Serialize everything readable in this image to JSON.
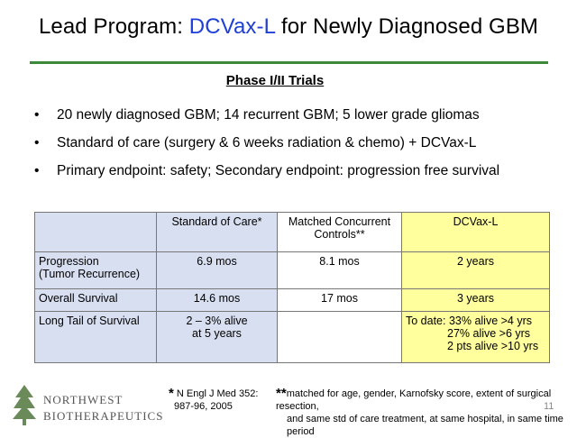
{
  "slide": {
    "title_prefix": "Lead Program: ",
    "title_highlight": "DCVax-L",
    "title_suffix": " for Newly Diagnosed GBM",
    "subtitle": "Phase I/II Trials",
    "bullets": [
      "20 newly diagnosed GBM;  14 recurrent GBM;  5 lower grade gliomas",
      "Standard of care (surgery & 6 weeks radiation & chemo) + DCVax-L",
      "Primary endpoint: safety;   Secondary endpoint: progression free survival"
    ],
    "bullet_symbol": "•",
    "colors": {
      "title_highlight": "#1f3fd6",
      "rule": "#3a8a3a",
      "blue_cells": "#d8dff0",
      "yellow_cells": "#ffff9e"
    }
  },
  "table": {
    "headers": [
      "",
      "Standard of Care*",
      "Matched  Concurrent Controls**",
      "DCVax-L"
    ],
    "rows": [
      {
        "label_line1": "Progression",
        "label_line2": "(Tumor Recurrence)",
        "soc": "6.9 mos",
        "mcc": "8.1 mos",
        "dcvax": "2 years"
      },
      {
        "label_line1": "Overall Survival",
        "label_line2": "",
        "soc": "14.6 mos",
        "mcc": "17 mos",
        "dcvax": "3 years"
      },
      {
        "label_line1": "Long Tail of Survival",
        "label_line2": "",
        "soc_line1": "2 – 3% alive",
        "soc_line2": "at 5 years",
        "mcc": "",
        "dcvax_line1": "To date:  33% alive >4 yrs",
        "dcvax_line2": "27% alive >6 yrs",
        "dcvax_line3": "2 pts alive >10 yrs"
      }
    ]
  },
  "footer": {
    "logo_line1": "NORTHWEST",
    "logo_line2": "BIOTHERAPEUTICS",
    "footnote1_mark": "*",
    "footnote1_line1": " N Engl J Med 352:",
    "footnote1_line2": "987-96, 2005",
    "footnote2_mark": "**",
    "footnote2_line1": "matched for age, gender, Karnofsky score, extent of surgical resection,",
    "footnote2_line2": "and same std of care treatment, at same hospital, in same time period",
    "page_number": "11"
  }
}
